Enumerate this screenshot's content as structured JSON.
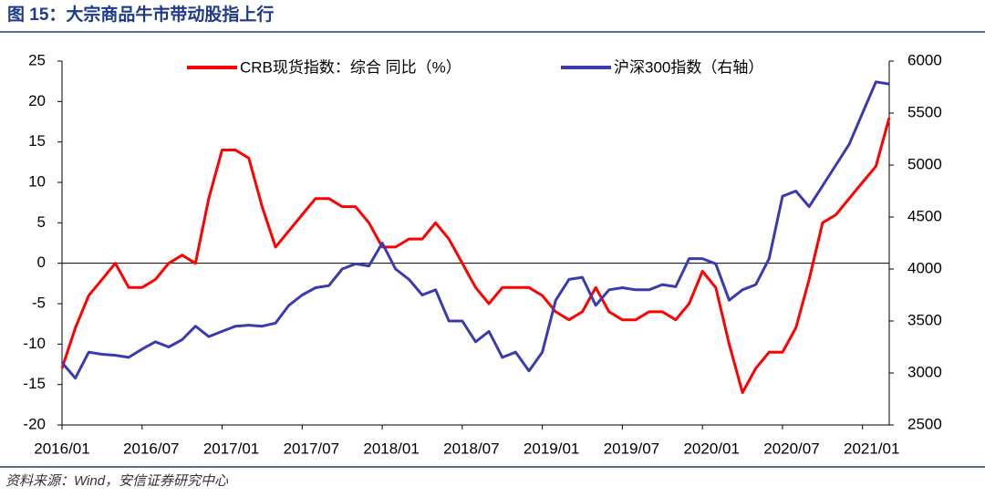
{
  "chart_data": {
    "type": "line",
    "title": "图 15：大宗商品牛市带动股指上行",
    "source": "资料来源：Wind，安信证券研究中心",
    "legend": "top",
    "categories": [
      "2016/01",
      null,
      null,
      null,
      null,
      null,
      "2016/07",
      null,
      null,
      null,
      null,
      null,
      "2017/01",
      null,
      null,
      null,
      null,
      null,
      "2017/07",
      null,
      null,
      null,
      null,
      null,
      "2018/01",
      null,
      null,
      null,
      null,
      null,
      "2018/07",
      null,
      null,
      null,
      null,
      null,
      "2019/01",
      null,
      null,
      null,
      null,
      null,
      "2019/07",
      null,
      null,
      null,
      null,
      null,
      "2020/01",
      null,
      null,
      null,
      null,
      null,
      "2020/07",
      null,
      null,
      null,
      null,
      null,
      "2021/01",
      null,
      null
    ],
    "series": [
      {
        "name": "CRB现货指数：综合 同比（%）",
        "color": "#ff0000",
        "values": [
          -13,
          -8,
          -4,
          -2,
          0,
          -3,
          -3,
          -2,
          0,
          1,
          0,
          8,
          14,
          14,
          13,
          7,
          2,
          4,
          6,
          8,
          8,
          7,
          7,
          5,
          2,
          2,
          3,
          3,
          5,
          3,
          0,
          -3,
          -5,
          -3,
          -3,
          -3,
          -4,
          -6,
          -7,
          -6,
          -3,
          -6,
          -7,
          -7,
          -6,
          -6,
          -7,
          -5,
          -1,
          -3,
          -10,
          -16,
          -13,
          -11,
          -11,
          -8,
          -2,
          5,
          6,
          8,
          10,
          12,
          18
        ]
      },
      {
        "name": "沪深300指数（右轴）",
        "color": "#3b3bb0",
        "axis": "y2",
        "values": [
          3100,
          2950,
          3200,
          3180,
          3170,
          3150,
          3230,
          3300,
          3250,
          3320,
          3450,
          3350,
          3400,
          3450,
          3460,
          3450,
          3480,
          3650,
          3750,
          3820,
          3840,
          4000,
          4050,
          4030,
          4250,
          4000,
          3900,
          3750,
          3800,
          3500,
          3500,
          3300,
          3400,
          3150,
          3200,
          3020,
          3200,
          3700,
          3900,
          3920,
          3650,
          3800,
          3820,
          3800,
          3800,
          3850,
          3830,
          4100,
          4100,
          4050,
          3700,
          3800,
          3850,
          4100,
          4700,
          4750,
          4600,
          4800,
          5000,
          5200,
          5500,
          5800,
          5780
        ]
      }
    ],
    "ylim": [
      -20,
      25
    ],
    "yticks": [
      -20,
      -15,
      -10,
      -5,
      0,
      5,
      10,
      15,
      20,
      25
    ],
    "y2lim": [
      2500,
      6000
    ],
    "y2ticks": [
      2500,
      3000,
      3500,
      4000,
      4500,
      5000,
      5500,
      6000
    ]
  }
}
